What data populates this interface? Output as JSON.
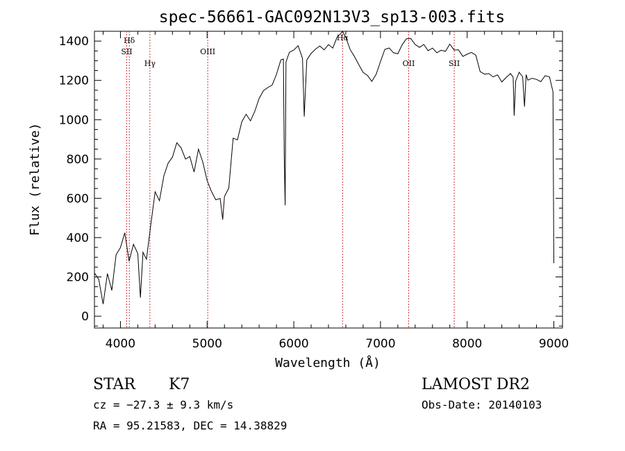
{
  "chart_data": {
    "type": "line",
    "title": "spec-56661-GAC092N13V3_sp13-003.fits",
    "xlabel": "Wavelength (Å)",
    "ylabel": "Flux (relative)",
    "xlim": [
      3700,
      9100
    ],
    "ylim": [
      -60,
      1450
    ],
    "xticks": [
      4000,
      5000,
      6000,
      7000,
      8000,
      9000
    ],
    "xtick_labels": [
      "4000",
      "5000",
      "6000",
      "7000",
      "8000",
      "9000"
    ],
    "yticks": [
      0,
      200,
      400,
      600,
      800,
      1000,
      1200,
      1400
    ],
    "ytick_labels": [
      "0",
      "200",
      "400",
      "600",
      "800",
      "1000",
      "1200",
      "1400"
    ],
    "grid": false,
    "line_color": "#000000",
    "marker_color": "#cc3333",
    "series": [
      {
        "x": [
          3700,
          3750,
          3800,
          3850,
          3900,
          3950,
          4000,
          4050,
          4100,
          4150,
          4200,
          4230,
          4260,
          4300,
          4350,
          4400,
          4450,
          4500,
          4550,
          4600,
          4650,
          4700,
          4750,
          4800,
          4850,
          4900,
          4950,
          5000,
          5050,
          5100,
          5150,
          5180,
          5200,
          5250,
          5300,
          5350,
          5400,
          5450,
          5500,
          5550,
          5600,
          5650,
          5700,
          5750,
          5800,
          5850,
          5880,
          5890,
          5900,
          5910,
          5930,
          5950,
          6000,
          6050,
          6100,
          6120,
          6150,
          6200,
          6250,
          6300,
          6350,
          6400,
          6450,
          6500,
          6550,
          6563,
          6600,
          6650,
          6700,
          6750,
          6800,
          6850,
          6900,
          6950,
          7000,
          7050,
          7100,
          7150,
          7200,
          7250,
          7300,
          7350,
          7400,
          7450,
          7500,
          7550,
          7600,
          7650,
          7700,
          7750,
          7800,
          7850,
          7900,
          7950,
          8000,
          8050,
          8100,
          8150,
          8200,
          8250,
          8300,
          8350,
          8400,
          8450,
          8500,
          8530,
          8542,
          8560,
          8600,
          8640,
          8662,
          8680,
          8700,
          8750,
          8800,
          8850,
          8900,
          8950,
          8990,
          9000
        ],
        "y": [
          220,
          160,
          60,
          200,
          120,
          300,
          330,
          420,
          300,
          380,
          320,
          100,
          350,
          290,
          470,
          620,
          560,
          700,
          760,
          800,
          860,
          840,
          780,
          830,
          760,
          870,
          800,
          720,
          660,
          610,
          570,
          470,
          600,
          640,
          900,
          880,
          960,
          1000,
          1010,
          1050,
          1120,
          1150,
          1180,
          1200,
          1240,
          1280,
          1300,
          800,
          560,
          1290,
          1310,
          1340,
          1360,
          1390,
          1330,
          1020,
          1320,
          1360,
          1380,
          1400,
          1350,
          1380,
          1340,
          1420,
          1440,
          1460,
          1400,
          1380,
          1340,
          1300,
          1260,
          1240,
          1220,
          1260,
          1320,
          1340,
          1360,
          1320,
          1330,
          1380,
          1390,
          1400,
          1410,
          1390,
          1410,
          1370,
          1380,
          1360,
          1370,
          1350,
          1360,
          1350,
          1340,
          1300,
          1310,
          1320,
          1300,
          1270,
          1260,
          1250,
          1240,
          1230,
          1220,
          1240,
          1220,
          1190,
          1010,
          1180,
          1220,
          1190,
          1060,
          1210,
          1230,
          1240,
          1220,
          1210,
          1240,
          1220,
          1160,
          240
        ]
      }
    ],
    "markers": [
      {
        "label": "Hδ",
        "x": 4102
      },
      {
        "label": "SII",
        "x": 4072
      },
      {
        "label": "Hγ",
        "x": 4340
      },
      {
        "label": "OIII",
        "x": 5007
      },
      {
        "label": "Hα",
        "x": 6563
      },
      {
        "label": "OII",
        "x": 7325
      },
      {
        "label": "SII",
        "x": 7851
      }
    ]
  },
  "info": {
    "object_class": "STAR",
    "subclass": "K7",
    "survey": "LAMOST DR2",
    "cz_line": "cz = −27.3 ± 9.3 km/s",
    "obs_date": "Obs-Date: 20140103",
    "coords": "RA =  95.21583, DEC =  14.38829"
  }
}
